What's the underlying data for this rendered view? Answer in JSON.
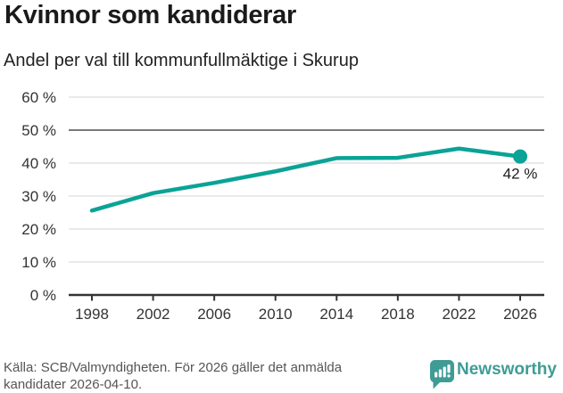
{
  "header": {
    "title": "Kvinnor som kandiderar",
    "subtitle": "Andel per val till kommunfullmäktige i Skurup"
  },
  "chart_data": {
    "type": "line",
    "title": "Kvinnor som kandiderar",
    "subtitle": "Andel per val till kommunfullmäktige i Skurup",
    "categories": [
      "1998",
      "2002",
      "2006",
      "2010",
      "2014",
      "2018",
      "2022",
      "2026"
    ],
    "values": [
      25.6,
      30.9,
      34.0,
      37.5,
      41.5,
      41.6,
      44.4,
      42.0
    ],
    "unit": "%",
    "ylim": [
      0,
      60
    ],
    "y_ticks": [
      "0 %",
      "10 %",
      "20 %",
      "30 %",
      "40 %",
      "50 %",
      "60 %"
    ],
    "reference_line": 50,
    "end_label": "42 %",
    "line_color": "#0aa396",
    "grid": true,
    "legend": "none"
  },
  "colors": {
    "grid": "#dcdcdc",
    "reference": "#7a7a7a",
    "axis": "#333333",
    "accent": "#0aa396",
    "brand": "#3f9c95"
  },
  "icons": {
    "logo": "newsworthy-bar-chart-bubble-icon"
  },
  "footer": {
    "source_text": "Källa: SCB/Valmyndigheten. För 2026 gäller det anmälda kandidater 2026-04-10.",
    "brand_name": "Newsworthy"
  }
}
